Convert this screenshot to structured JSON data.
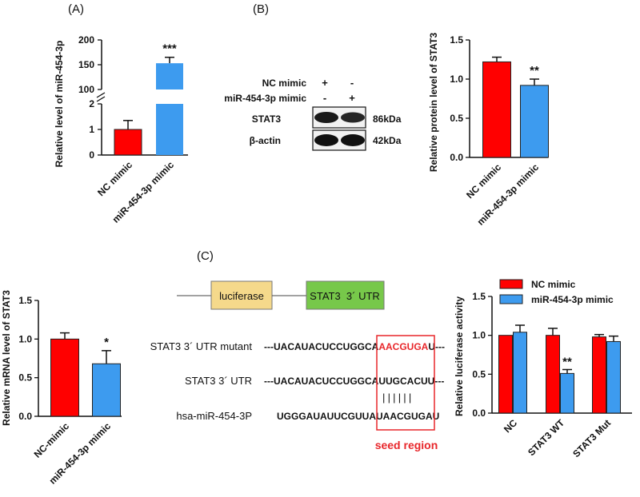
{
  "panels": {
    "a_label": "(A)",
    "b_label": "(B)",
    "c_label": "(C)"
  },
  "colors": {
    "nc": "#ff0000",
    "mir": "#3d9bef",
    "seed": "#e8262a",
    "luciferase_box": "#f5d98b",
    "utr_box": "#77c84a"
  },
  "chart_data": [
    {
      "id": "A",
      "type": "bar",
      "title": "",
      "ylabel": "Relative level of miR-454-3p",
      "categories": [
        "NC mimic",
        "miR-454-3p mimic"
      ],
      "values": [
        1.0,
        153
      ],
      "errors": [
        0.35,
        12
      ],
      "significance": [
        "",
        "***"
      ],
      "axis_break": true,
      "lower_ticks": [
        "0",
        "1",
        "2"
      ],
      "upper_ticks": [
        "100",
        "150",
        "200"
      ],
      "ylim_lower": [
        0,
        2
      ],
      "ylim_upper": [
        100,
        200
      ]
    },
    {
      "id": "B",
      "type": "bar",
      "title": "",
      "ylabel": "Relative protein level of STAT3",
      "categories": [
        "NC mimic",
        "miR-454-3p mimic"
      ],
      "values": [
        1.22,
        0.92
      ],
      "errors": [
        0.06,
        0.08
      ],
      "significance": [
        "",
        "**"
      ],
      "ylim": [
        0,
        1.5
      ],
      "ticks": [
        "0.0",
        "0.5",
        "1.0",
        "1.5"
      ]
    },
    {
      "id": "C1",
      "type": "bar",
      "title": "",
      "ylabel": "Relative mRNA level of STAT3",
      "categories": [
        "NC-mimic",
        "miR-454-3p mimic"
      ],
      "values": [
        1.0,
        0.68
      ],
      "errors": [
        0.08,
        0.17
      ],
      "significance": [
        "",
        "*"
      ],
      "ylim": [
        0,
        1.5
      ],
      "ticks": [
        "0.0",
        "0.5",
        "1.0",
        "1.5"
      ]
    },
    {
      "id": "C2",
      "type": "bar",
      "title": "",
      "ylabel": "Relative luciferase activity",
      "categories": [
        "NC",
        "STAT3 WT",
        "STAT3 Mut"
      ],
      "series": [
        {
          "name": "NC mimic",
          "values": [
            1.0,
            1.0,
            0.98
          ],
          "errors": [
            0,
            0.09,
            0.03
          ]
        },
        {
          "name": "miR-454-3p mimic",
          "values": [
            1.04,
            0.51,
            0.92
          ],
          "errors": [
            0.09,
            0.05,
            0.07
          ]
        }
      ],
      "significance": [
        [
          "",
          ""
        ],
        [
          "",
          "**"
        ],
        [
          "",
          ""
        ]
      ],
      "legend": "top-right",
      "ylim": [
        0,
        1.5
      ],
      "ticks": [
        "0.0",
        "0.5",
        "1.0",
        "1.5"
      ]
    }
  ],
  "western": {
    "rows": [
      {
        "label": "NC mimic",
        "lane1": "+",
        "lane2": "-"
      },
      {
        "label": "miR-454-3p mimic",
        "lane1": "-",
        "lane2": "+"
      }
    ],
    "bands": [
      {
        "name": "STAT3",
        "size": "86kDa"
      },
      {
        "name": "β-actin",
        "size": "42kDa"
      }
    ]
  },
  "construct": {
    "luciferase": "luciferase",
    "utr": "STAT3  3´ UTR"
  },
  "alignment": {
    "rows": [
      {
        "label": "STAT3 3´ UTR mutant",
        "dots": "---",
        "prefix": "UACAUACUCCUGGCA",
        "seed": "AACGUGA",
        "suffix": "U",
        "end": "---"
      },
      {
        "label": "STAT3 3´ UTR",
        "dots": "---",
        "prefix": "UACAUACUCCUGGCA",
        "seed": "UUGCACU",
        "suffix": "U",
        "end": "---"
      },
      {
        "label": "hsa-miR-454-3P",
        "dots": "",
        "prefix": "UGGGAUAUUCGUUAU",
        "seed": "AACGUGA",
        "suffix": "U",
        "end": ""
      }
    ],
    "pairing": "||||||",
    "seed_label": "seed region"
  }
}
